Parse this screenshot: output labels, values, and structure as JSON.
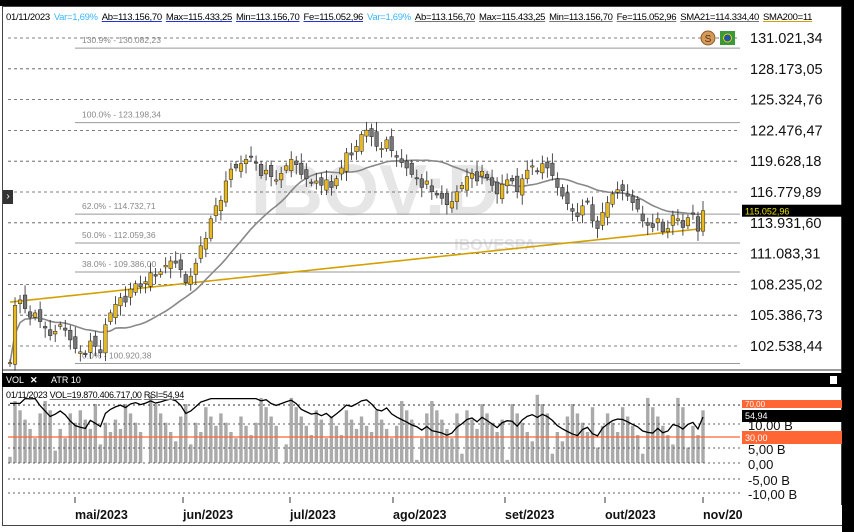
{
  "header": {
    "date": "01/11/2023",
    "var1": "Var=1,69%",
    "ab1": "Ab=113.156,70",
    "max1": "Max=115.433,25",
    "min1": "Min=113.156,70",
    "fe1": "Fe=115.052,96",
    "var2": "Var=1,69%",
    "ab2": "Ab=113.156,70",
    "max2": "Max=115.433,25",
    "min2": "Min=113.156,70",
    "fe2": "Fe=115.052,96",
    "sma21": "SMA21=114.334,40",
    "sma200": "SMA200=11"
  },
  "watermark": {
    "symbol": "IBOV:D",
    "name": "IBOVESPA"
  },
  "price_axis": [
    "131.021,34",
    "128.173,05",
    "125.324,76",
    "122.476,47",
    "119.628,18",
    "116.779,89",
    "113.931,60",
    "111.083,31",
    "108.235,02",
    "105.386,73",
    "102.538,44"
  ],
  "last_price": "115.052,96",
  "fibonacci": [
    {
      "label": "130.9% - 130.082,23",
      "value": 130082.23
    },
    {
      "label": "100.0% - 123.198,34",
      "value": 123198.34
    },
    {
      "label": "62.0% - 114.732,71",
      "value": 114732.71
    },
    {
      "label": "50.0% - 112.059,36",
      "value": 112059.36
    },
    {
      "label": "38.0% - 109.386,00",
      "value": 109386.0
    },
    {
      "label": "0.0% - 100.920,38",
      "value": 100920.38
    }
  ],
  "tabs": [
    {
      "label": "VOL"
    },
    {
      "label": "ATR 10"
    }
  ],
  "sub_header": {
    "date": "01/11/2023",
    "vol": "VOL=19.870.406.717,00",
    "rsi": "RSI=54,94"
  },
  "volume_axis": [
    "10,00 B",
    "5,00 B",
    "0,00",
    "-5,00 B",
    "-10,00 B"
  ],
  "rsi_levels": {
    "upper": "70,00",
    "current": "54,94",
    "lower": "30,00"
  },
  "months": [
    "mai/2023",
    "jun/2023",
    "jul/2023",
    "ago/2023",
    "set/2023",
    "out/2023",
    "nov/2023"
  ],
  "colors": {
    "up": "#e8b820",
    "down": "#777777",
    "sma21": "#888888",
    "sma200": "#d4a000",
    "rsi_line": "#000000",
    "rsi_30": "#ff6633",
    "volume": "#aaaaaa"
  },
  "chart_data": {
    "type": "candlestick",
    "symbol": "IBOV:D",
    "close": [
      101.0,
      106.3,
      106.8,
      106.0,
      105.2,
      105.6,
      104.8,
      104.2,
      103.5,
      103.9,
      104.5,
      104.0,
      103.1,
      102.3,
      102.0,
      101.8,
      103.0,
      102.5,
      101.9,
      104.5,
      105.6,
      106.4,
      107.0,
      106.6,
      107.8,
      108.3,
      108.0,
      108.5,
      109.3,
      109.0,
      109.4,
      110.0,
      110.4,
      110.2,
      109.6,
      108.4,
      109.0,
      110.2,
      111.8,
      112.5,
      114.3,
      115.5,
      116.0,
      117.8,
      118.9,
      119.0,
      119.4,
      119.8,
      120.0,
      119.5,
      118.3,
      118.8,
      118.2,
      117.9,
      118.5,
      119.2,
      119.8,
      119.3,
      118.4,
      118.0,
      117.6,
      117.8,
      117.4,
      117.9,
      117.2,
      118.0,
      119.0,
      120.4,
      120.2,
      121.0,
      122.1,
      122.5,
      121.9,
      121.0,
      120.8,
      121.6,
      120.6,
      120.0,
      119.5,
      119.0,
      118.4,
      118.0,
      117.2,
      117.8,
      116.8,
      116.5,
      116.2,
      115.6,
      115.9,
      116.8,
      117.4,
      118.2,
      118.5,
      117.8,
      118.7,
      118.1,
      117.4,
      116.6,
      117.5,
      117.9,
      117.8,
      116.8,
      118.0,
      118.8,
      119.2,
      118.7,
      119.4,
      119.0,
      118.3,
      117.2,
      116.4,
      115.7,
      115.0,
      114.5,
      115.5,
      115.9,
      114.1,
      113.4,
      114.9,
      115.8,
      116.6,
      117.0,
      116.9,
      116.4,
      115.8,
      115.2,
      114.1,
      113.7,
      113.5,
      114.3,
      113.1,
      113.4,
      114.6,
      114.3,
      113.5,
      114.4,
      114.8,
      113.16,
      115.05
    ],
    "unit": "thousand points",
    "sma200_range": [
      106.6,
      113.4
    ],
    "ylim": [
      101.5,
      132.5
    ]
  }
}
